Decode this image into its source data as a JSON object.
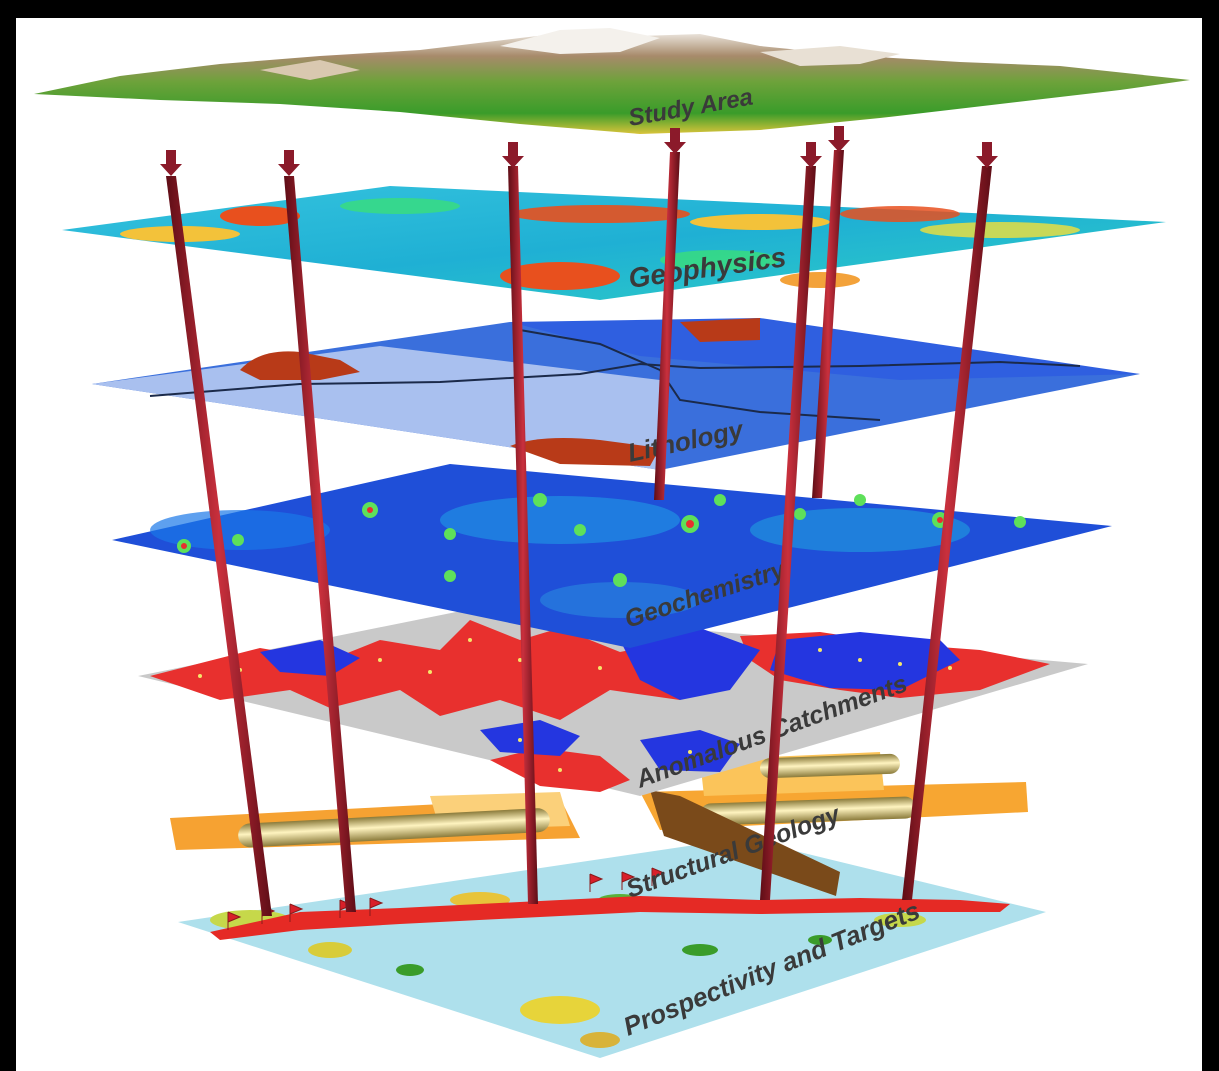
{
  "layers": [
    {
      "label": "Study Area"
    },
    {
      "label": "Geophysics"
    },
    {
      "label": "Lithology"
    },
    {
      "label": "Geochemistry"
    },
    {
      "label": "Anomalous Catchments"
    },
    {
      "label": "Structural Geology"
    },
    {
      "label": "Prospectivity and Targets"
    }
  ],
  "colors": {
    "arrow": "#8b1a2a",
    "rod": "#a31d2b",
    "geophysics_base": "#1fb5d8",
    "lithology_base": "#3a6fdc",
    "lithology_light": "#a9c0ef",
    "geochem_base": "#1e4fd6",
    "catchment_base": "#c8c8c8",
    "target_base": "#aee0ec"
  }
}
